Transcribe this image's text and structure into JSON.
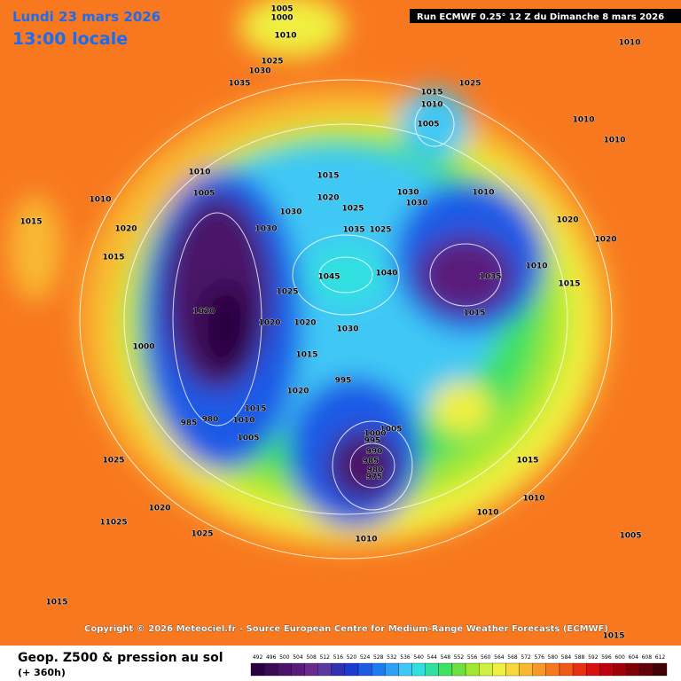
{
  "header": {
    "title": "Lundi 23 mars 2026",
    "subtitle": "13:00 locale",
    "run": "Run ECMWF 0.25° 12 Z du Dimanche 8 mars 2026"
  },
  "map": {
    "isobar_labels": [
      "1005",
      "1000",
      "1010",
      "1025",
      "1030",
      "1035",
      "1010",
      "1025",
      "1015",
      "1010",
      "1005",
      "1010",
      "1010",
      "1010",
      "1005",
      "1015",
      "1020",
      "1030",
      "1030",
      "1010",
      "1025",
      "1030",
      "1030",
      "1035",
      "1025",
      "1020",
      "1020",
      "1015",
      "1010",
      "1020",
      "1015",
      "1045",
      "1040",
      "1010",
      "1015",
      "1035",
      "1025",
      "1020",
      "1020",
      "1020",
      "1030",
      "1015",
      "1000",
      "1015",
      "995",
      "1020",
      "1015",
      "980",
      "985",
      "1010",
      "1005",
      "1005",
      "1000",
      "995",
      "990",
      "985",
      "980",
      "975",
      "1025",
      "1015",
      "1020",
      "1010",
      "1025",
      "1010",
      "1015",
      "11025",
      "1010",
      "1005",
      "1015"
    ]
  },
  "footer": {
    "copyright": "Copyright © 2026 Meteociel.fr - Source European Centre for Medium-Range Weather Forecasts (ECMWF)",
    "field": "Geop. Z500 & pression au sol",
    "lead": "(+ 360h)"
  },
  "colorbar": {
    "values": [
      492,
      496,
      500,
      504,
      508,
      512,
      516,
      520,
      524,
      528,
      532,
      536,
      540,
      544,
      548,
      552,
      556,
      560,
      564,
      568,
      572,
      576,
      580,
      584,
      588,
      592,
      596,
      600,
      604,
      608,
      612
    ],
    "colors": [
      "#2b0040",
      "#3a0a55",
      "#4a1268",
      "#5a1c7a",
      "#6a2a8c",
      "#5a3aa0",
      "#3030b0",
      "#1c3cd0",
      "#1e5ae6",
      "#1e7af0",
      "#30a0f5",
      "#40c8f5",
      "#30e0e0",
      "#30e0a0",
      "#40e060",
      "#70e040",
      "#a0e830",
      "#d0f040",
      "#f0f040",
      "#f8d838",
      "#f8b830",
      "#f89828",
      "#f87820",
      "#f05818",
      "#e83010",
      "#d81010",
      "#c00010",
      "#a00008",
      "#800008",
      "#600008",
      "#400004"
    ]
  }
}
